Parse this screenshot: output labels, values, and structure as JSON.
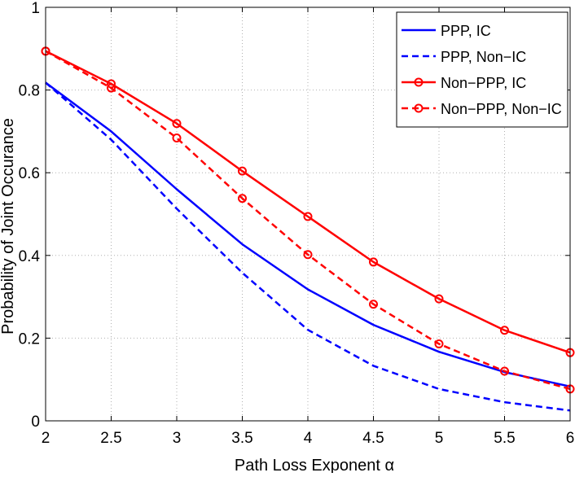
{
  "chart_data": {
    "type": "line",
    "title": "",
    "xlabel": "Path Loss Exponent α",
    "ylabel": "Probability of Joint Occurance",
    "xlim": [
      2,
      6
    ],
    "ylim": [
      0,
      1
    ],
    "xticks": [
      2,
      2.5,
      3,
      3.5,
      4,
      4.5,
      5,
      5.5,
      6
    ],
    "xtick_labels": [
      "2",
      "2.5",
      "3",
      "3.5",
      "4",
      "4.5",
      "5",
      "5.5",
      "6"
    ],
    "yticks": [
      0,
      0.2,
      0.4,
      0.6,
      0.8,
      1
    ],
    "ytick_labels": [
      "0",
      "0.2",
      "0.4",
      "0.6",
      "0.8",
      "1"
    ],
    "grid": true,
    "legend_position": "top-right",
    "x": [
      2,
      2.5,
      3,
      3.5,
      4,
      4.5,
      5,
      5.5,
      6
    ],
    "series": [
      {
        "name": "PPP, IC",
        "values": [
          0.818,
          0.7,
          0.56,
          0.427,
          0.318,
          0.232,
          0.167,
          0.118,
          0.083
        ],
        "color": "#0000ff",
        "line_style": "solid",
        "marker": "none"
      },
      {
        "name": "PPP, Non−IC",
        "values": [
          0.818,
          0.68,
          0.513,
          0.358,
          0.22,
          0.133,
          0.077,
          0.045,
          0.025
        ],
        "color": "#0000ff",
        "line_style": "dashed",
        "marker": "none"
      },
      {
        "name": "Non−PPP, IC",
        "values": [
          0.894,
          0.815,
          0.719,
          0.604,
          0.494,
          0.384,
          0.295,
          0.219,
          0.165
        ],
        "color": "#ff0000",
        "line_style": "solid",
        "marker": "circle"
      },
      {
        "name": "Non−PPP, Non−IC",
        "values": [
          0.894,
          0.805,
          0.684,
          0.538,
          0.402,
          0.282,
          0.186,
          0.12,
          0.077
        ],
        "color": "#ff0000",
        "line_style": "dashed",
        "marker": "circle"
      }
    ]
  }
}
